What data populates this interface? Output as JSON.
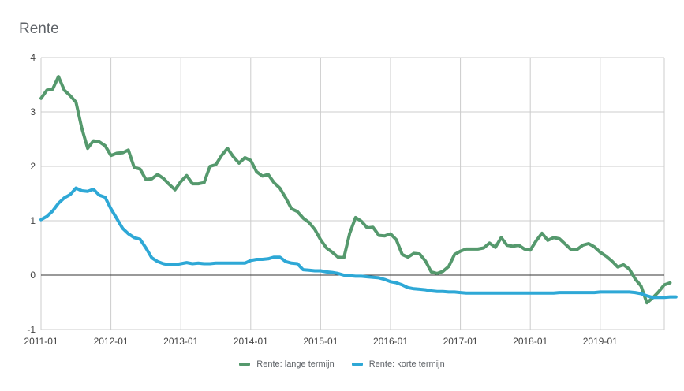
{
  "chart_data": {
    "type": "line",
    "title": "Rente",
    "xlabel": "",
    "ylabel": "",
    "ylim": [
      -1,
      4
    ],
    "y_ticks": [
      -1,
      0,
      1,
      2,
      3,
      4
    ],
    "y_tick_labels": [
      "-1",
      "0",
      "1",
      "2",
      "3",
      "4"
    ],
    "x_ticks": [
      0,
      12,
      24,
      36,
      48,
      60,
      72,
      84,
      96
    ],
    "x_tick_labels": [
      "2011-01",
      "2012-01",
      "2013-01",
      "2014-01",
      "2015-01",
      "2016-01",
      "2017-01",
      "2018-01",
      "2019-01"
    ],
    "x_range": [
      0,
      107
    ],
    "grid": true,
    "legend_position": "bottom",
    "series": [
      {
        "name": "Rente: lange termijn",
        "color": "#55996d",
        "values": [
          3.25,
          3.4,
          3.42,
          3.65,
          3.4,
          3.3,
          3.18,
          2.7,
          2.33,
          2.47,
          2.45,
          2.38,
          2.2,
          2.24,
          2.25,
          2.3,
          1.98,
          1.95,
          1.76,
          1.77,
          1.85,
          1.78,
          1.67,
          1.57,
          1.72,
          1.83,
          1.68,
          1.68,
          1.7,
          2.0,
          2.03,
          2.2,
          2.33,
          2.18,
          2.06,
          2.16,
          2.11,
          1.9,
          1.82,
          1.85,
          1.7,
          1.6,
          1.42,
          1.22,
          1.17,
          1.05,
          0.97,
          0.84,
          0.65,
          0.5,
          0.42,
          0.33,
          0.32,
          0.77,
          1.06,
          0.99,
          0.87,
          0.88,
          0.73,
          0.72,
          0.76,
          0.65,
          0.38,
          0.33,
          0.4,
          0.39,
          0.26,
          0.06,
          0.03,
          0.07,
          0.16,
          0.38,
          0.44,
          0.48,
          0.48,
          0.48,
          0.5,
          0.59,
          0.51,
          0.69,
          0.55,
          0.53,
          0.55,
          0.48,
          0.46,
          0.63,
          0.77,
          0.64,
          0.69,
          0.67,
          0.57,
          0.47,
          0.47,
          0.55,
          0.58,
          0.52,
          0.42,
          0.35,
          0.26,
          0.15,
          0.19,
          0.11,
          -0.07,
          -0.2,
          -0.51,
          -0.42,
          -0.31,
          -0.18,
          -0.14
        ]
      },
      {
        "name": "Rente: korte termijn",
        "color": "#2ea8d6",
        "values": [
          1.02,
          1.08,
          1.18,
          1.32,
          1.42,
          1.48,
          1.6,
          1.55,
          1.54,
          1.58,
          1.47,
          1.43,
          1.22,
          1.04,
          0.86,
          0.76,
          0.69,
          0.66,
          0.5,
          0.32,
          0.25,
          0.21,
          0.19,
          0.19,
          0.21,
          0.23,
          0.21,
          0.22,
          0.21,
          0.21,
          0.22,
          0.22,
          0.22,
          0.22,
          0.22,
          0.22,
          0.27,
          0.29,
          0.29,
          0.3,
          0.33,
          0.33,
          0.25,
          0.22,
          0.21,
          0.1,
          0.09,
          0.08,
          0.08,
          0.06,
          0.05,
          0.03,
          0.0,
          -0.01,
          -0.02,
          -0.02,
          -0.03,
          -0.04,
          -0.05,
          -0.08,
          -0.12,
          -0.14,
          -0.18,
          -0.23,
          -0.25,
          -0.26,
          -0.27,
          -0.29,
          -0.3,
          -0.3,
          -0.31,
          -0.31,
          -0.32,
          -0.33,
          -0.33,
          -0.33,
          -0.33,
          -0.33,
          -0.33,
          -0.33,
          -0.33,
          -0.33,
          -0.33,
          -0.33,
          -0.33,
          -0.33,
          -0.33,
          -0.33,
          -0.33,
          -0.32,
          -0.32,
          -0.32,
          -0.32,
          -0.32,
          -0.32,
          -0.32,
          -0.31,
          -0.31,
          -0.31,
          -0.31,
          -0.31,
          -0.31,
          -0.32,
          -0.34,
          -0.38,
          -0.41,
          -0.41,
          -0.41,
          -0.4,
          -0.4
        ]
      }
    ]
  }
}
